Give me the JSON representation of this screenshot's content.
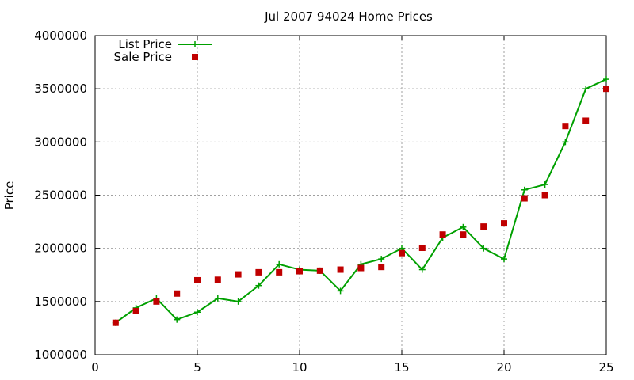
{
  "chart_data": {
    "type": "line",
    "title": "Jul 2007 94024 Home Prices",
    "xlabel": "",
    "ylabel": "Price",
    "xlim": [
      0,
      25
    ],
    "ylim": [
      1000000,
      4000000
    ],
    "x_ticks": [
      0,
      5,
      10,
      15,
      20,
      25
    ],
    "x_tick_labels": [
      "0",
      "5",
      "10",
      "15",
      "20",
      "25"
    ],
    "y_ticks": [
      1000000,
      1500000,
      2000000,
      2500000,
      3000000,
      3500000,
      4000000
    ],
    "y_tick_labels": [
      "1000000",
      "1500000",
      "2000000",
      "2500000",
      "3000000",
      "3500000",
      "4000000"
    ],
    "grid": true,
    "legend_position": "top-left",
    "series": [
      {
        "name": "List Price",
        "style": "linespoints",
        "marker": "plus",
        "color": "#00a000",
        "x": [
          1,
          2,
          3,
          4,
          5,
          6,
          7,
          8,
          9,
          10,
          11,
          12,
          13,
          14,
          15,
          16,
          17,
          18,
          19,
          20,
          21,
          22,
          23,
          24,
          25
        ],
        "y": [
          1300000,
          1440000,
          1530000,
          1330000,
          1400000,
          1530000,
          1500000,
          1650000,
          1850000,
          1800000,
          1790000,
          1600000,
          1850000,
          1900000,
          2000000,
          1800000,
          2100000,
          2200000,
          2000000,
          1900000,
          2550000,
          2600000,
          3000000,
          3500000,
          3590000
        ]
      },
      {
        "name": "Sale Price",
        "style": "points",
        "marker": "square",
        "color": "#c00000",
        "x": [
          1,
          2,
          3,
          4,
          5,
          6,
          7,
          8,
          9,
          10,
          11,
          12,
          13,
          14,
          15,
          16,
          17,
          18,
          19,
          20,
          21,
          22,
          23,
          24,
          25
        ],
        "y": [
          1300000,
          1410000,
          1500000,
          1575000,
          1700000,
          1705000,
          1755000,
          1775000,
          1775000,
          1785000,
          1790000,
          1800000,
          1815000,
          1825000,
          1955000,
          2005000,
          2130000,
          2130000,
          2205000,
          2235000,
          2470000,
          2500000,
          3150000,
          3200000,
          3500000
        ]
      }
    ]
  }
}
